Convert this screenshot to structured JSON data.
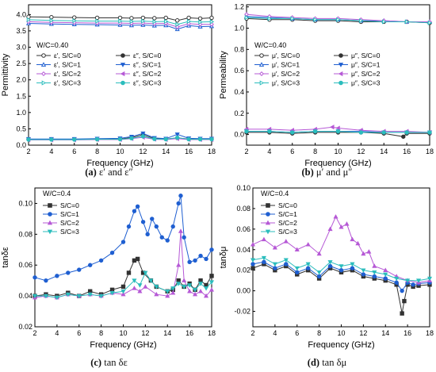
{
  "chart_data": [
    {
      "type": "line",
      "caption_letter": "(a)",
      "caption_text": "ε′ and ε″",
      "annotation": "W/C=0.40",
      "xlabel": "Frequency (GHz)",
      "ylabel": "Permittivity",
      "xlim": [
        2,
        18
      ],
      "ylim": [
        0.0,
        4.3
      ],
      "xticks": [
        2,
        4,
        6,
        8,
        10,
        12,
        14,
        16,
        18
      ],
      "yticks": [
        0.0,
        0.5,
        1.0,
        1.5,
        2.0,
        2.5,
        3.0,
        3.5,
        4.0
      ],
      "ytick_labels": [
        "0.0",
        "0.5",
        "1.0",
        "1.5",
        "2.0",
        "2.5",
        "3.0",
        "3.5",
        "4.0"
      ],
      "legend_columns": 2,
      "legend_position": "middle-left",
      "series": [
        {
          "name": "ε′, S/C=0",
          "color": "#333333",
          "marker": "circle",
          "filled": false,
          "x": [
            2,
            4,
            6,
            8,
            10,
            11,
            12,
            13,
            14,
            15,
            16,
            17,
            18
          ],
          "y": [
            3.93,
            3.92,
            3.91,
            3.9,
            3.9,
            3.89,
            3.9,
            3.89,
            3.9,
            3.82,
            3.9,
            3.88,
            3.9
          ]
        },
        {
          "name": "ε″, S/C=0",
          "color": "#333333",
          "marker": "circle",
          "filled": true,
          "x": [
            2,
            4,
            6,
            8,
            10,
            11,
            12,
            13,
            14,
            15,
            16,
            17,
            18
          ],
          "y": [
            0.18,
            0.18,
            0.18,
            0.18,
            0.19,
            0.23,
            0.32,
            0.2,
            0.19,
            0.22,
            0.19,
            0.19,
            0.19
          ]
        },
        {
          "name": "ε′, S/C=1",
          "color": "#1f5fd1",
          "marker": "triangle-up",
          "filled": false,
          "x": [
            2,
            4,
            6,
            8,
            10,
            11,
            12,
            13,
            14,
            15,
            16,
            17,
            18
          ],
          "y": [
            3.73,
            3.71,
            3.7,
            3.69,
            3.68,
            3.67,
            3.68,
            3.66,
            3.67,
            3.55,
            3.66,
            3.63,
            3.64
          ]
        },
        {
          "name": "ε″, S/C=1",
          "color": "#1f5fd1",
          "marker": "triangle-down",
          "filled": true,
          "x": [
            2,
            4,
            6,
            8,
            10,
            11,
            12,
            13,
            14,
            15,
            16,
            17,
            18
          ],
          "y": [
            0.19,
            0.19,
            0.19,
            0.2,
            0.21,
            0.26,
            0.36,
            0.22,
            0.2,
            0.33,
            0.21,
            0.2,
            0.2
          ]
        },
        {
          "name": "ε′, S/C=2",
          "color": "#b659d6",
          "marker": "diamond",
          "filled": false,
          "x": [
            2,
            4,
            6,
            8,
            10,
            11,
            12,
            13,
            14,
            15,
            16,
            17,
            18
          ],
          "y": [
            3.78,
            3.76,
            3.75,
            3.74,
            3.74,
            3.73,
            3.74,
            3.72,
            3.73,
            3.62,
            3.72,
            3.7,
            3.7
          ]
        },
        {
          "name": "ε″, S/C=2",
          "color": "#b659d6",
          "marker": "triangle-left",
          "filled": true,
          "x": [
            2,
            4,
            6,
            8,
            10,
            11,
            12,
            13,
            14,
            15,
            16,
            17,
            18
          ],
          "y": [
            0.16,
            0.16,
            0.16,
            0.17,
            0.17,
            0.2,
            0.24,
            0.18,
            0.17,
            0.2,
            0.17,
            0.17,
            0.17
          ]
        },
        {
          "name": "ε′, S/C=3",
          "color": "#2bbdbd",
          "marker": "triangle-right",
          "filled": false,
          "x": [
            2,
            4,
            6,
            8,
            10,
            11,
            12,
            13,
            14,
            15,
            16,
            17,
            18
          ],
          "y": [
            3.84,
            3.82,
            3.81,
            3.8,
            3.8,
            3.79,
            3.8,
            3.78,
            3.79,
            3.7,
            3.79,
            3.77,
            3.78
          ]
        },
        {
          "name": "ε″, S/C=3",
          "color": "#2bbdbd",
          "marker": "circle",
          "filled": true,
          "x": [
            2,
            4,
            6,
            8,
            10,
            11,
            12,
            13,
            14,
            15,
            16,
            17,
            18
          ],
          "y": [
            0.17,
            0.17,
            0.17,
            0.18,
            0.18,
            0.21,
            0.27,
            0.19,
            0.18,
            0.23,
            0.18,
            0.18,
            0.18
          ]
        }
      ]
    },
    {
      "type": "line",
      "caption_letter": "(b)",
      "caption_text": "μ′ and μ″",
      "annotation": "W/C=0.40",
      "xlabel": "Frequency (GHz)",
      "ylabel": "Permeability",
      "xlim": [
        2,
        18
      ],
      "ylim": [
        -0.1,
        1.22
      ],
      "xticks": [
        2,
        4,
        6,
        8,
        10,
        12,
        14,
        16,
        18
      ],
      "yticks": [
        0.0,
        0.2,
        0.4,
        0.6,
        0.8,
        1.0,
        1.2
      ],
      "ytick_labels": [
        "0.0",
        "0.2",
        "0.4",
        "0.6",
        "0.8",
        "1.0",
        "1.2"
      ],
      "legend_columns": 2,
      "legend_position": "middle-left",
      "series": [
        {
          "name": "μ′, S/C=0",
          "color": "#333333",
          "marker": "circle",
          "filled": false,
          "x": [
            2,
            4,
            6,
            8,
            10,
            12,
            14,
            16,
            18
          ],
          "y": [
            1.09,
            1.08,
            1.08,
            1.07,
            1.07,
            1.06,
            1.06,
            1.06,
            1.05
          ]
        },
        {
          "name": "μ″, S/C=0",
          "color": "#333333",
          "marker": "circle",
          "filled": true,
          "x": [
            2,
            4,
            6,
            8,
            10,
            12,
            14,
            15.7,
            16,
            18
          ],
          "y": [
            0.02,
            0.02,
            0.01,
            0.02,
            0.02,
            0.02,
            0.01,
            -0.02,
            0.01,
            0.01
          ]
        },
        {
          "name": "μ′, S/C=1",
          "color": "#1f5fd1",
          "marker": "triangle-up",
          "filled": false,
          "x": [
            2,
            4,
            6,
            8,
            10,
            12,
            14,
            16,
            18
          ],
          "y": [
            1.11,
            1.1,
            1.09,
            1.08,
            1.08,
            1.07,
            1.07,
            1.06,
            1.06
          ]
        },
        {
          "name": "μ″, S/C=1",
          "color": "#1f5fd1",
          "marker": "triangle-down",
          "filled": true,
          "x": [
            2,
            4,
            6,
            8,
            10,
            12,
            14,
            16,
            18
          ],
          "y": [
            0.03,
            0.03,
            0.02,
            0.03,
            0.03,
            0.03,
            0.02,
            0.02,
            0.02
          ]
        },
        {
          "name": "μ′, S/C=2",
          "color": "#b659d6",
          "marker": "diamond",
          "filled": false,
          "x": [
            2,
            4,
            6,
            8,
            10,
            12,
            14,
            16,
            18
          ],
          "y": [
            1.13,
            1.11,
            1.1,
            1.09,
            1.09,
            1.08,
            1.07,
            1.06,
            1.06
          ]
        },
        {
          "name": "μ″, S/C=2",
          "color": "#b659d6",
          "marker": "triangle-left",
          "filled": true,
          "x": [
            2,
            4,
            6,
            8,
            9.5,
            10,
            12,
            14,
            16,
            18
          ],
          "y": [
            0.05,
            0.05,
            0.04,
            0.05,
            0.07,
            0.06,
            0.04,
            0.03,
            0.03,
            0.02
          ]
        },
        {
          "name": "μ′, S/C=3",
          "color": "#2bbdbd",
          "marker": "triangle-right",
          "filled": false,
          "x": [
            2,
            4,
            6,
            8,
            10,
            12,
            14,
            16,
            18
          ],
          "y": [
            1.1,
            1.09,
            1.09,
            1.08,
            1.08,
            1.07,
            1.06,
            1.06,
            1.05
          ]
        },
        {
          "name": "μ″, S/C=3",
          "color": "#2bbdbd",
          "marker": "circle",
          "filled": true,
          "x": [
            2,
            4,
            6,
            8,
            10,
            12,
            14,
            16,
            18
          ],
          "y": [
            0.03,
            0.03,
            0.02,
            0.03,
            0.03,
            0.02,
            0.02,
            0.02,
            0.02
          ]
        }
      ]
    },
    {
      "type": "line",
      "caption_letter": "(c)",
      "caption_text": "tan δε",
      "annotation": "W/C=0.4",
      "xlabel": "Frequency (GHz)",
      "ylabel": "tanδε",
      "xlim": [
        2,
        18
      ],
      "ylim": [
        0.02,
        0.11
      ],
      "xticks": [
        2,
        4,
        6,
        8,
        10,
        12,
        14,
        16,
        18
      ],
      "yticks": [
        0.02,
        0.04,
        0.06,
        0.08,
        0.1
      ],
      "ytick_labels": [
        "0.02",
        "0.04",
        "0.06",
        "0.08",
        "0.10"
      ],
      "legend_columns": 1,
      "legend_position": "top-left",
      "series": [
        {
          "name": "S/C=0",
          "color": "#333333",
          "marker": "square",
          "filled": true,
          "x": [
            2,
            3,
            4,
            5,
            6,
            7,
            8,
            9,
            10,
            10.5,
            11,
            11.3,
            11.8,
            12.5,
            13,
            14,
            14.5,
            15,
            15.5,
            16,
            16.5,
            17,
            17.5,
            18
          ],
          "y": [
            0.04,
            0.041,
            0.04,
            0.042,
            0.04,
            0.043,
            0.041,
            0.044,
            0.046,
            0.055,
            0.063,
            0.064,
            0.055,
            0.05,
            0.046,
            0.043,
            0.044,
            0.05,
            0.046,
            0.048,
            0.044,
            0.05,
            0.047,
            0.053
          ]
        },
        {
          "name": "S/C=1",
          "color": "#1f5fd1",
          "marker": "circle",
          "filled": true,
          "x": [
            2,
            3,
            4,
            5,
            6,
            7,
            8,
            9,
            10,
            10.5,
            11,
            11.3,
            11.8,
            12.2,
            12.6,
            13,
            13.5,
            14,
            14.5,
            15,
            15.2,
            15.5,
            16,
            16.5,
            17,
            17.5,
            18
          ],
          "y": [
            0.052,
            0.05,
            0.053,
            0.055,
            0.057,
            0.06,
            0.063,
            0.068,
            0.075,
            0.085,
            0.095,
            0.098,
            0.088,
            0.08,
            0.09,
            0.085,
            0.078,
            0.076,
            0.085,
            0.1,
            0.105,
            0.078,
            0.062,
            0.063,
            0.066,
            0.064,
            0.07
          ]
        },
        {
          "name": "S/C=2",
          "color": "#b659d6",
          "marker": "triangle-up",
          "filled": true,
          "x": [
            2,
            3,
            4,
            5,
            6,
            7,
            8,
            9,
            10,
            11,
            11.5,
            12,
            13,
            14,
            14.5,
            15,
            15.2,
            15.5,
            16,
            16.5,
            17,
            17.5,
            18
          ],
          "y": [
            0.039,
            0.04,
            0.039,
            0.041,
            0.04,
            0.041,
            0.04,
            0.042,
            0.041,
            0.045,
            0.043,
            0.046,
            0.041,
            0.04,
            0.042,
            0.06,
            0.082,
            0.05,
            0.043,
            0.041,
            0.043,
            0.04,
            0.044
          ]
        },
        {
          "name": "S/C=3",
          "color": "#2bbdbd",
          "marker": "triangle-down",
          "filled": true,
          "x": [
            2,
            3,
            4,
            5,
            6,
            7,
            8,
            9,
            10,
            11,
            11.5,
            12,
            12.5,
            13,
            14,
            14.5,
            15,
            15.5,
            16,
            16.5,
            17,
            17.5,
            18
          ],
          "y": [
            0.04,
            0.04,
            0.039,
            0.041,
            0.04,
            0.041,
            0.04,
            0.042,
            0.043,
            0.05,
            0.047,
            0.055,
            0.05,
            0.046,
            0.043,
            0.045,
            0.048,
            0.046,
            0.047,
            0.044,
            0.048,
            0.045,
            0.049
          ]
        }
      ]
    },
    {
      "type": "line",
      "caption_letter": "(d)",
      "caption_text": "tan δμ",
      "annotation": "W/C=0.4",
      "xlabel": "Frequency (GHz)",
      "ylabel": "tanδμ",
      "xlim": [
        2,
        18
      ],
      "ylim": [
        -0.035,
        0.1
      ],
      "xticks": [
        2,
        4,
        6,
        8,
        10,
        12,
        14,
        16,
        18
      ],
      "yticks": [
        -0.02,
        0.0,
        0.02,
        0.04,
        0.06,
        0.08,
        0.1
      ],
      "ytick_labels": [
        "-0.02",
        "0.00",
        "0.02",
        "0.04",
        "0.06",
        "0.08",
        "0.10"
      ],
      "legend_columns": 1,
      "legend_position": "top-left",
      "series": [
        {
          "name": "S/C=0",
          "color": "#333333",
          "marker": "square",
          "filled": true,
          "x": [
            2,
            3,
            4,
            5,
            6,
            7,
            8,
            9,
            10,
            11,
            12,
            13,
            14,
            15,
            15.5,
            15.7,
            16,
            16.5,
            17,
            18
          ],
          "y": [
            0.022,
            0.026,
            0.02,
            0.024,
            0.016,
            0.02,
            0.012,
            0.022,
            0.018,
            0.02,
            0.014,
            0.012,
            0.01,
            0.006,
            -0.022,
            -0.01,
            0.006,
            0.004,
            0.005,
            0.006
          ]
        },
        {
          "name": "S/C=1",
          "color": "#1f5fd1",
          "marker": "circle",
          "filled": true,
          "x": [
            2,
            3,
            4,
            5,
            6,
            7,
            8,
            9,
            10,
            11,
            12,
            13,
            14,
            15,
            15.5,
            16,
            16.5,
            17,
            18
          ],
          "y": [
            0.026,
            0.028,
            0.022,
            0.026,
            0.018,
            0.022,
            0.014,
            0.024,
            0.02,
            0.022,
            0.016,
            0.014,
            0.012,
            0.008,
            0.0,
            0.008,
            0.006,
            0.007,
            0.008
          ]
        },
        {
          "name": "S/C=2",
          "color": "#b659d6",
          "marker": "triangle-up",
          "filled": true,
          "x": [
            2,
            3,
            4,
            5,
            6,
            7,
            8,
            9,
            9.5,
            10,
            10.5,
            11,
            11.5,
            12,
            12.5,
            13,
            14,
            15,
            16,
            17,
            18
          ],
          "y": [
            0.045,
            0.05,
            0.042,
            0.048,
            0.04,
            0.045,
            0.036,
            0.06,
            0.072,
            0.062,
            0.065,
            0.05,
            0.046,
            0.036,
            0.038,
            0.024,
            0.02,
            0.014,
            0.01,
            0.008,
            0.01
          ]
        },
        {
          "name": "S/C=3",
          "color": "#2bbdbd",
          "marker": "triangle-down",
          "filled": true,
          "x": [
            2,
            3,
            4,
            5,
            6,
            7,
            8,
            9,
            10,
            11,
            12,
            13,
            14,
            15,
            16,
            17,
            18
          ],
          "y": [
            0.03,
            0.032,
            0.026,
            0.03,
            0.022,
            0.026,
            0.018,
            0.028,
            0.024,
            0.026,
            0.02,
            0.018,
            0.016,
            0.012,
            0.01,
            0.01,
            0.012
          ]
        }
      ]
    }
  ]
}
